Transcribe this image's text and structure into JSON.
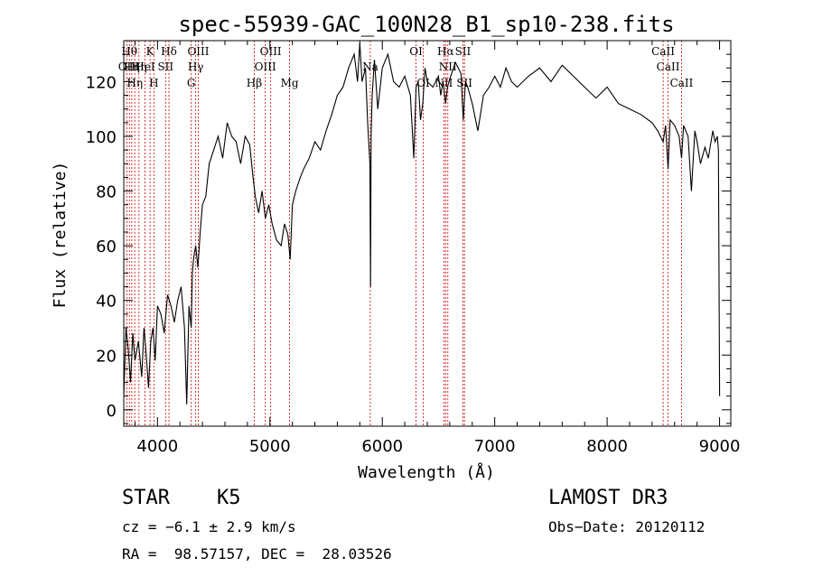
{
  "chart_data": {
    "type": "line",
    "title": "spec-55939-GAC_100N28_B1_sp10-238.fits",
    "xlabel": "Wavelength (Å)",
    "ylabel": "Flux (relative)",
    "xlim": [
      3700,
      9100
    ],
    "ylim": [
      -6,
      135
    ],
    "xticks": [
      4000,
      5000,
      6000,
      7000,
      8000,
      9000
    ],
    "yticks": [
      0,
      20,
      40,
      60,
      80,
      100,
      120
    ],
    "xtick_labels": [
      "4000",
      "5000",
      "6000",
      "7000",
      "8000",
      "9000"
    ],
    "ytick_labels": [
      "0",
      "20",
      "40",
      "60",
      "80",
      "100",
      "120"
    ],
    "series": [
      {
        "name": "flux",
        "x": [
          3700,
          3720,
          3740,
          3760,
          3780,
          3800,
          3830,
          3860,
          3880,
          3900,
          3920,
          3940,
          3960,
          3980,
          4000,
          4030,
          4060,
          4090,
          4120,
          4150,
          4180,
          4210,
          4240,
          4260,
          4280,
          4300,
          4310,
          4320,
          4340,
          4360,
          4380,
          4400,
          4430,
          4460,
          4500,
          4540,
          4580,
          4620,
          4660,
          4700,
          4740,
          4780,
          4820,
          4850,
          4870,
          4900,
          4930,
          4960,
          4990,
          5020,
          5060,
          5100,
          5130,
          5160,
          5180,
          5200,
          5230,
          5270,
          5300,
          5350,
          5400,
          5450,
          5500,
          5550,
          5600,
          5650,
          5700,
          5750,
          5780,
          5800,
          5820,
          5850,
          5870,
          5890,
          5895,
          5900,
          5910,
          5930,
          5960,
          6000,
          6050,
          6100,
          6150,
          6200,
          6250,
          6280,
          6300,
          6320,
          6340,
          6360,
          6380,
          6400,
          6450,
          6500,
          6520,
          6540,
          6563,
          6580,
          6600,
          6650,
          6700,
          6720,
          6740,
          6760,
          6800,
          6850,
          6900,
          6950,
          7000,
          7050,
          7100,
          7150,
          7200,
          7300,
          7400,
          7500,
          7600,
          7700,
          7800,
          7900,
          8000,
          8100,
          8200,
          8300,
          8400,
          8450,
          8498,
          8520,
          8542,
          8560,
          8600,
          8640,
          8662,
          8680,
          8720,
          8750,
          8780,
          8800,
          8830,
          8870,
          8900,
          8940,
          8960,
          8980,
          8990,
          9000
        ],
        "y": [
          5,
          30,
          22,
          10,
          28,
          18,
          25,
          12,
          30,
          20,
          8,
          25,
          30,
          18,
          38,
          35,
          28,
          42,
          38,
          32,
          40,
          45,
          30,
          2,
          38,
          30,
          50,
          55,
          60,
          52,
          65,
          75,
          78,
          90,
          95,
          100,
          92,
          105,
          100,
          98,
          90,
          100,
          97,
          85,
          78,
          72,
          80,
          70,
          75,
          68,
          62,
          60,
          68,
          64,
          55,
          75,
          80,
          85,
          88,
          92,
          98,
          95,
          102,
          108,
          115,
          118,
          125,
          130,
          120,
          134,
          120,
          125,
          105,
          90,
          45,
          100,
          115,
          128,
          110,
          125,
          130,
          120,
          118,
          122,
          115,
          92,
          118,
          120,
          106,
          112,
          125,
          120,
          118,
          122,
          115,
          120,
          112,
          118,
          121,
          127,
          123,
          106,
          120,
          118,
          112,
          102,
          115,
          118,
          122,
          118,
          125,
          120,
          118,
          122,
          125,
          120,
          126,
          122,
          118,
          114,
          118,
          112,
          110,
          108,
          105,
          102,
          98,
          104,
          88,
          106,
          104,
          100,
          92,
          104,
          100,
          80,
          102,
          98,
          90,
          96,
          92,
          102,
          98,
          100,
          95,
          5
        ]
      }
    ],
    "line_markers": [
      {
        "wavelength": 3727,
        "row": 2,
        "label": "OII"
      },
      {
        "wavelength": 3750,
        "row": 1,
        "label": "Hθ"
      },
      {
        "wavelength": 3771,
        "row": 2,
        "label": "Hη"
      },
      {
        "wavelength": 3798,
        "row": 3,
        "label": "Hη"
      },
      {
        "wavelength": 3835,
        "row": 2,
        "label": "Hη"
      },
      {
        "wavelength": 3889,
        "row": 2,
        "label": "HeI"
      },
      {
        "wavelength": 3934,
        "row": 1,
        "label": "K"
      },
      {
        "wavelength": 3968,
        "row": 3,
        "label": "H"
      },
      {
        "wavelength": 4072,
        "row": 2,
        "label": "SII"
      },
      {
        "wavelength": 4102,
        "row": 1,
        "label": "Hδ"
      },
      {
        "wavelength": 4300,
        "row": 3,
        "label": "G"
      },
      {
        "wavelength": 4340,
        "row": 2,
        "label": "Hγ"
      },
      {
        "wavelength": 4363,
        "row": 1,
        "label": "OIII"
      },
      {
        "wavelength": 4861,
        "row": 3,
        "label": "Hβ"
      },
      {
        "wavelength": 4959,
        "row": 2,
        "label": "OIII"
      },
      {
        "wavelength": 5007,
        "row": 1,
        "label": "OIII"
      },
      {
        "wavelength": 5175,
        "row": 3,
        "label": "Mg"
      },
      {
        "wavelength": 5893,
        "row": 2,
        "label": "Na"
      },
      {
        "wavelength": 6300,
        "row": 1,
        "label": "OI"
      },
      {
        "wavelength": 6364,
        "row": 3,
        "label": "OI"
      },
      {
        "wavelength": 6548,
        "row": 3,
        "label": "NII"
      },
      {
        "wavelength": 6563,
        "row": 1,
        "label": "Hα"
      },
      {
        "wavelength": 6583,
        "row": 2,
        "label": "NII"
      },
      {
        "wavelength": 6717,
        "row": 1,
        "label": "SII"
      },
      {
        "wavelength": 6731,
        "row": 3,
        "label": "SII"
      },
      {
        "wavelength": 8498,
        "row": 1,
        "label": "CaII"
      },
      {
        "wavelength": 8542,
        "row": 2,
        "label": "CaII"
      },
      {
        "wavelength": 8662,
        "row": 3,
        "label": "CaII"
      }
    ]
  },
  "info": {
    "object_type": "STAR",
    "subclass": "K5",
    "survey": "LAMOST DR3",
    "redshift": "cz = −6.1 ± 2.9 km/s",
    "obs_date": "Obs−Date: 20120112",
    "coords": "RA =  98.57157, DEC =  28.03526"
  },
  "colors": {
    "line": "#000000",
    "marker": "#cc0000",
    "background": "#ffffff"
  }
}
